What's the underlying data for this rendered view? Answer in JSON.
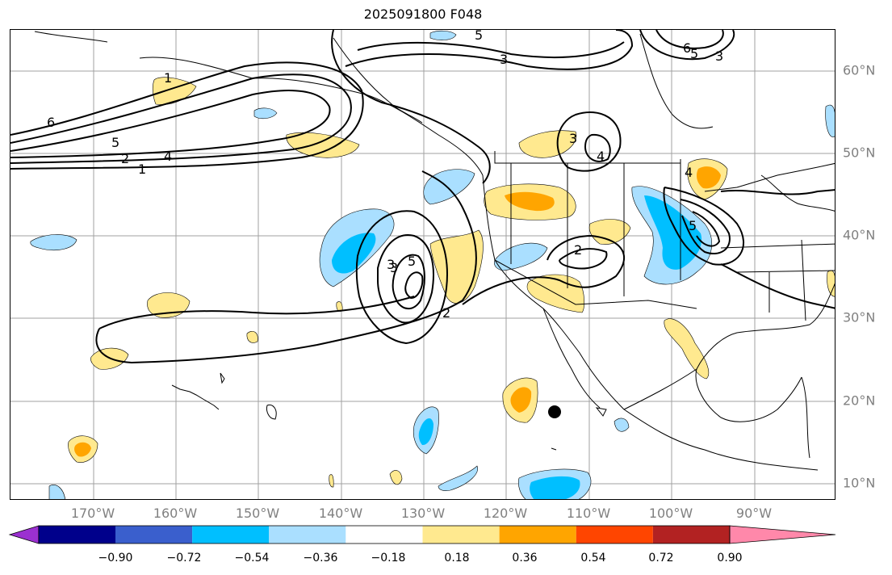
{
  "title": "2025091800 F048",
  "map": {
    "projection": "plate-carree",
    "lon_range": [
      -180,
      -80
    ],
    "lat_range": [
      8,
      65
    ],
    "lon_labels": [
      "170°W",
      "160°W",
      "150°W",
      "140°W",
      "130°W",
      "120°W",
      "110°W",
      "100°W",
      "90°W"
    ],
    "lat_labels": [
      "60°N",
      "50°N",
      "40°N",
      "30°N",
      "20°N",
      "10°N"
    ],
    "contour_labels": [
      "6",
      "5",
      "4",
      "2",
      "1",
      "3",
      "5",
      "3",
      "2",
      "5",
      "3",
      "6",
      "5",
      "3",
      "4",
      "3",
      "2",
      "4",
      "5",
      "1"
    ],
    "marker": "storm-center-dot"
  },
  "colorbar": {
    "ticks": [
      "−0.90",
      "−0.72",
      "−0.54",
      "−0.36",
      "−0.18",
      "0.18",
      "0.36",
      "0.54",
      "0.72",
      "0.90"
    ],
    "colors": [
      "#9b30d0",
      "#00008b",
      "#3a5fcd",
      "#00bfff",
      "#aadfff",
      "#ffffff",
      "#ffe98f",
      "#ffa500",
      "#ff4500",
      "#b22222",
      "#ff88aa"
    ],
    "extend": "both"
  }
}
